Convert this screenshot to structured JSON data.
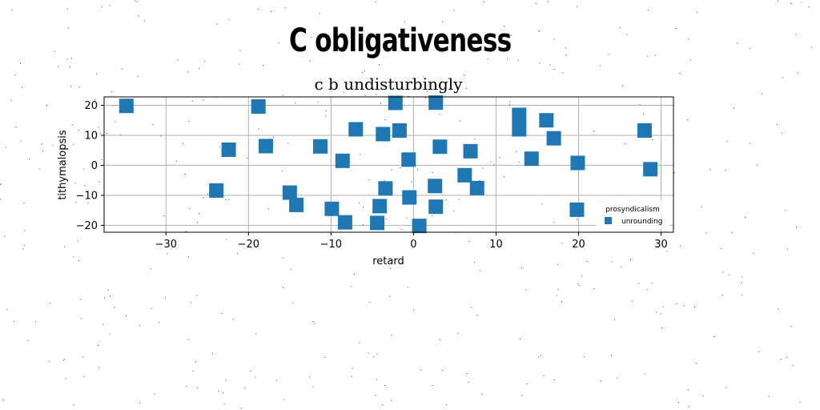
{
  "chart_data": {
    "type": "scatter",
    "suptitle": "C obligativeness",
    "title": "c b undisturbingly",
    "xlabel": "retard",
    "ylabel": "tithymalopsis",
    "xlim": [
      -37.5,
      31.5
    ],
    "ylim": [
      -22.3,
      22.8
    ],
    "xticks": [
      -30,
      -20,
      -10,
      0,
      10,
      20,
      30
    ],
    "yticks": [
      -20,
      -10,
      0,
      10,
      20
    ],
    "grid": true,
    "legend": {
      "title": "prosyndicalism",
      "position": "lower-right"
    },
    "color": "#1f77b4",
    "marker": "square",
    "series": [
      {
        "name": "unrounding",
        "points": [
          [
            -34.8,
            19.8
          ],
          [
            -18.8,
            19.6
          ],
          [
            -2.2,
            20.8
          ],
          [
            2.7,
            20.9
          ],
          [
            12.8,
            16.8
          ],
          [
            16.1,
            15.0
          ],
          [
            12.8,
            12.0
          ],
          [
            -7.0,
            12.0
          ],
          [
            -3.7,
            10.4
          ],
          [
            -1.7,
            11.6
          ],
          [
            17.0,
            9.0
          ],
          [
            28.0,
            11.6
          ],
          [
            -22.4,
            5.2
          ],
          [
            -17.9,
            6.4
          ],
          [
            -11.3,
            6.3
          ],
          [
            3.2,
            6.2
          ],
          [
            6.9,
            4.7
          ],
          [
            -8.6,
            1.5
          ],
          [
            -0.6,
            1.9
          ],
          [
            14.3,
            2.2
          ],
          [
            19.9,
            0.8
          ],
          [
            28.7,
            -1.3
          ],
          [
            6.2,
            -3.3
          ],
          [
            7.7,
            -7.6
          ],
          [
            -23.9,
            -8.4
          ],
          [
            -15.0,
            -9.1
          ],
          [
            -3.4,
            -7.7
          ],
          [
            2.6,
            -6.9
          ],
          [
            -0.5,
            -10.7
          ],
          [
            -14.2,
            -13.2
          ],
          [
            -9.9,
            -14.5
          ],
          [
            -4.1,
            -13.6
          ],
          [
            2.7,
            -13.8
          ],
          [
            19.8,
            -14.8
          ],
          [
            -8.3,
            -19.0
          ],
          [
            -4.4,
            -19.2
          ],
          [
            0.7,
            -20.2
          ]
        ]
      }
    ]
  }
}
